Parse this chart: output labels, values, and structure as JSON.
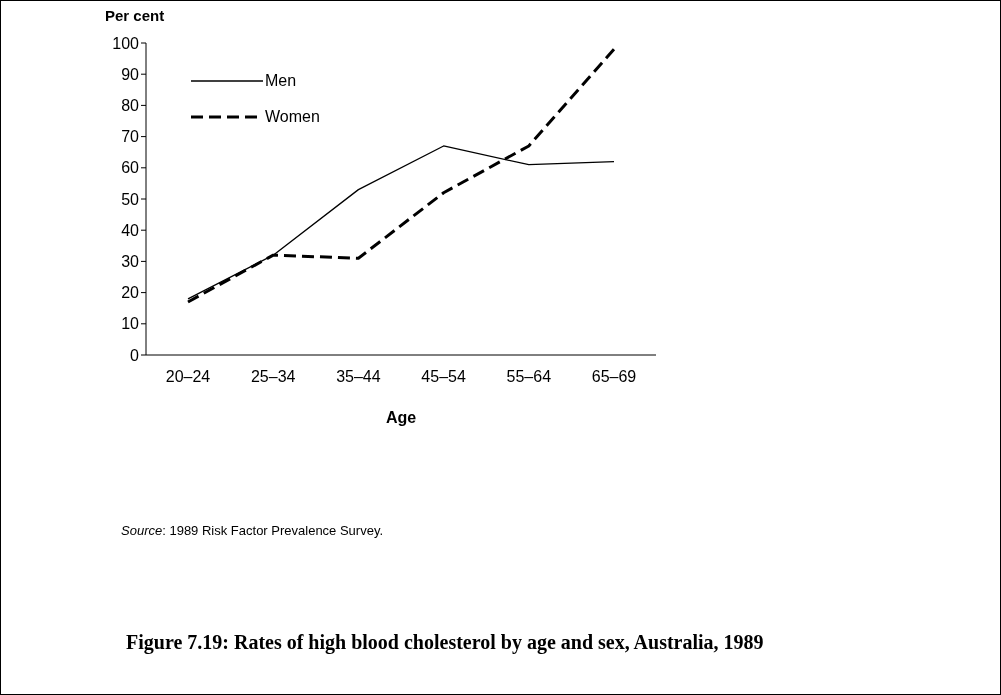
{
  "chart_data": {
    "type": "line",
    "title": "Figure 7.19: Rates of high blood cholesterol by age and sex, Australia, 1989",
    "xlabel": "Age",
    "ylabel": "Per cent",
    "annotations": [
      "Source: 1989 Risk Factor Prevalence Survey."
    ],
    "categories": [
      "20–24",
      "25–34",
      "35–44",
      "45–54",
      "55–64",
      "65–69"
    ],
    "series": [
      {
        "name": "Men",
        "color": "#000000",
        "line_style": "solid",
        "values": [
          18,
          32,
          53,
          67,
          61,
          62
        ]
      },
      {
        "name": "Women",
        "color": "#000000",
        "line_style": "dashed",
        "values": [
          17,
          32,
          31,
          52,
          67,
          98
        ]
      }
    ],
    "ylim": [
      0,
      100
    ],
    "yticks": [
      0,
      10,
      20,
      30,
      40,
      50,
      60,
      70,
      80,
      90,
      100
    ],
    "grid": false,
    "legend": "top left",
    "marker": "none"
  }
}
